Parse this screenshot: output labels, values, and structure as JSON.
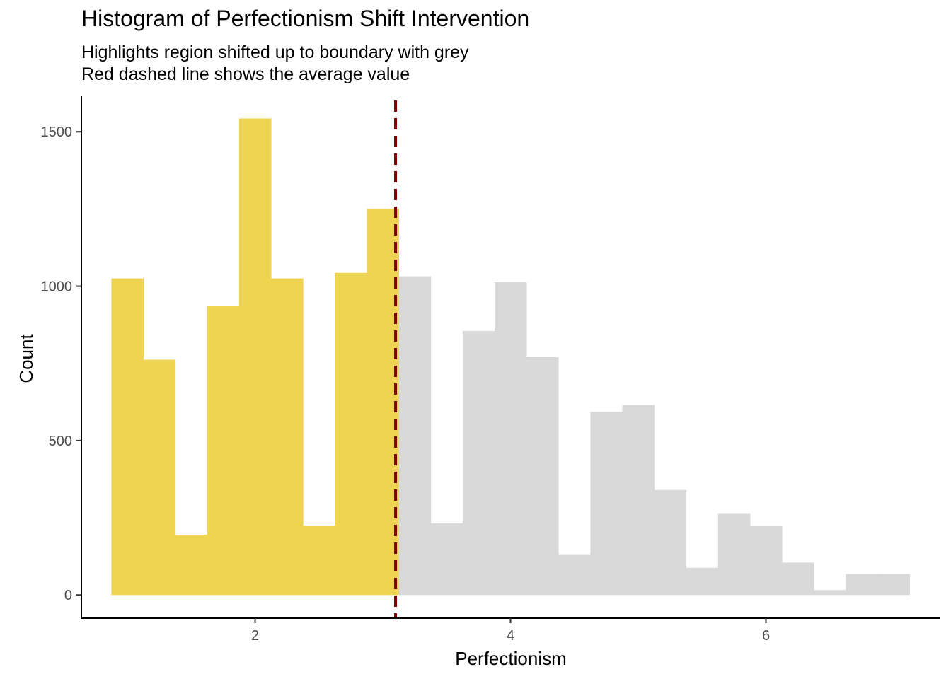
{
  "chart_data": {
    "type": "bar",
    "title": "Histogram of Perfectionism Shift Intervention",
    "subtitle": [
      "Highlights region shifted up to boundary with grey",
      "Red dashed line shows the average value"
    ],
    "xlabel": "Perfectionism",
    "ylabel": "Count",
    "xlim": [
      0.64,
      7.36
    ],
    "ylim": [
      -75,
      1615
    ],
    "x_ticks": [
      2,
      4,
      6
    ],
    "y_ticks": [
      0,
      500,
      1000,
      1500
    ],
    "bin_width": 0.25,
    "mean_line": {
      "value": 3.1,
      "color": "#7f0000",
      "style": "dashed"
    },
    "colors": {
      "highlight": "#efd452",
      "rest": "#d9d9d9",
      "axis": "#000000"
    },
    "bins": [
      {
        "x_start": 0.875,
        "x_end": 1.125,
        "count": 1025,
        "group": "highlight"
      },
      {
        "x_start": 1.125,
        "x_end": 1.375,
        "count": 762,
        "group": "highlight"
      },
      {
        "x_start": 1.375,
        "x_end": 1.625,
        "count": 195,
        "group": "highlight"
      },
      {
        "x_start": 1.625,
        "x_end": 1.875,
        "count": 937,
        "group": "highlight"
      },
      {
        "x_start": 1.875,
        "x_end": 2.125,
        "count": 1543,
        "group": "highlight"
      },
      {
        "x_start": 2.125,
        "x_end": 2.375,
        "count": 1025,
        "group": "highlight"
      },
      {
        "x_start": 2.375,
        "x_end": 2.625,
        "count": 225,
        "group": "highlight"
      },
      {
        "x_start": 2.625,
        "x_end": 2.875,
        "count": 1043,
        "group": "highlight"
      },
      {
        "x_start": 2.875,
        "x_end": 3.125,
        "count": 1250,
        "group": "highlight"
      },
      {
        "x_start": 3.125,
        "x_end": 3.375,
        "count": 1032,
        "group": "rest"
      },
      {
        "x_start": 3.375,
        "x_end": 3.625,
        "count": 232,
        "group": "rest"
      },
      {
        "x_start": 3.625,
        "x_end": 3.875,
        "count": 855,
        "group": "rest"
      },
      {
        "x_start": 3.875,
        "x_end": 4.125,
        "count": 1013,
        "group": "rest"
      },
      {
        "x_start": 4.125,
        "x_end": 4.375,
        "count": 770,
        "group": "rest"
      },
      {
        "x_start": 4.375,
        "x_end": 4.625,
        "count": 132,
        "group": "rest"
      },
      {
        "x_start": 4.625,
        "x_end": 4.875,
        "count": 593,
        "group": "rest"
      },
      {
        "x_start": 4.875,
        "x_end": 5.125,
        "count": 615,
        "group": "rest"
      },
      {
        "x_start": 5.125,
        "x_end": 5.375,
        "count": 340,
        "group": "rest"
      },
      {
        "x_start": 5.375,
        "x_end": 5.625,
        "count": 88,
        "group": "rest"
      },
      {
        "x_start": 5.625,
        "x_end": 5.875,
        "count": 263,
        "group": "rest"
      },
      {
        "x_start": 5.875,
        "x_end": 6.125,
        "count": 223,
        "group": "rest"
      },
      {
        "x_start": 6.125,
        "x_end": 6.375,
        "count": 105,
        "group": "rest"
      },
      {
        "x_start": 6.375,
        "x_end": 6.625,
        "count": 16,
        "group": "rest"
      },
      {
        "x_start": 6.625,
        "x_end": 6.875,
        "count": 68,
        "group": "rest"
      },
      {
        "x_start": 6.875,
        "x_end": 7.125,
        "count": 68,
        "group": "rest"
      }
    ]
  }
}
